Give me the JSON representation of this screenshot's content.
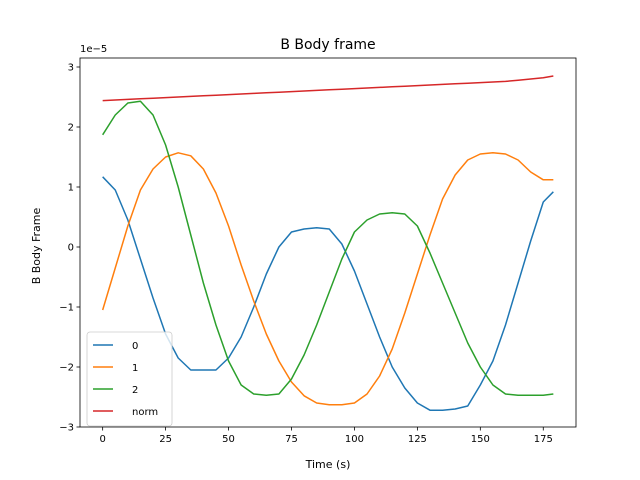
{
  "chart_data": {
    "type": "line",
    "title": "B Body frame",
    "xlabel": "Time (s)",
    "ylabel": "B Body Frame",
    "y_offset_label": "1e−5",
    "xlim": [
      -9,
      188
    ],
    "ylim": [
      -3.0,
      3.15
    ],
    "xticks": [
      0,
      25,
      50,
      75,
      100,
      125,
      150,
      175
    ],
    "yticks": [
      -3,
      -2,
      -1,
      0,
      1,
      2,
      3
    ],
    "ytick_labels": [
      "−3",
      "−2",
      "−1",
      "0",
      "1",
      "2",
      "3"
    ],
    "grid": false,
    "legend_position": "lower-left",
    "x": [
      0,
      5,
      10,
      15,
      20,
      25,
      30,
      35,
      40,
      45,
      50,
      55,
      60,
      65,
      70,
      75,
      80,
      85,
      90,
      95,
      100,
      105,
      110,
      115,
      120,
      125,
      130,
      135,
      140,
      145,
      150,
      155,
      160,
      165,
      170,
      175,
      179
    ],
    "series": [
      {
        "name": "0",
        "color": "#1f77b4",
        "values": [
          1.17,
          0.95,
          0.45,
          -0.2,
          -0.85,
          -1.45,
          -1.85,
          -2.05,
          -2.05,
          -2.05,
          -1.85,
          -1.5,
          -1.0,
          -0.45,
          0.0,
          0.25,
          0.3,
          0.32,
          0.3,
          0.05,
          -0.4,
          -0.95,
          -1.5,
          -2.0,
          -2.35,
          -2.6,
          -2.72,
          -2.72,
          -2.7,
          -2.65,
          -2.3,
          -1.9,
          -1.3,
          -0.6,
          0.1,
          0.75,
          0.92
        ]
      },
      {
        "name": "1",
        "color": "#ff7f0e",
        "values": [
          -1.05,
          -0.35,
          0.35,
          0.95,
          1.3,
          1.5,
          1.57,
          1.52,
          1.3,
          0.9,
          0.35,
          -0.3,
          -0.9,
          -1.45,
          -1.9,
          -2.25,
          -2.48,
          -2.6,
          -2.63,
          -2.63,
          -2.6,
          -2.45,
          -2.15,
          -1.7,
          -1.1,
          -0.45,
          0.2,
          0.8,
          1.2,
          1.45,
          1.55,
          1.57,
          1.55,
          1.45,
          1.25,
          1.12,
          1.12
        ]
      },
      {
        "name": "2",
        "color": "#2ca02c",
        "values": [
          1.87,
          2.2,
          2.4,
          2.43,
          2.2,
          1.7,
          1.0,
          0.2,
          -0.6,
          -1.3,
          -1.9,
          -2.3,
          -2.45,
          -2.47,
          -2.45,
          -2.2,
          -1.8,
          -1.3,
          -0.75,
          -0.2,
          0.25,
          0.45,
          0.55,
          0.57,
          0.55,
          0.35,
          -0.1,
          -0.6,
          -1.1,
          -1.6,
          -2.0,
          -2.3,
          -2.45,
          -2.47,
          -2.47,
          -2.47,
          -2.45
        ]
      },
      {
        "name": "norm",
        "color": "#d62728",
        "values": [
          2.44,
          2.45,
          2.46,
          2.47,
          2.48,
          2.49,
          2.5,
          2.51,
          2.52,
          2.53,
          2.54,
          2.55,
          2.56,
          2.57,
          2.58,
          2.59,
          2.6,
          2.61,
          2.62,
          2.63,
          2.64,
          2.65,
          2.66,
          2.67,
          2.68,
          2.69,
          2.7,
          2.71,
          2.72,
          2.73,
          2.74,
          2.75,
          2.76,
          2.78,
          2.8,
          2.82,
          2.85
        ]
      }
    ]
  }
}
